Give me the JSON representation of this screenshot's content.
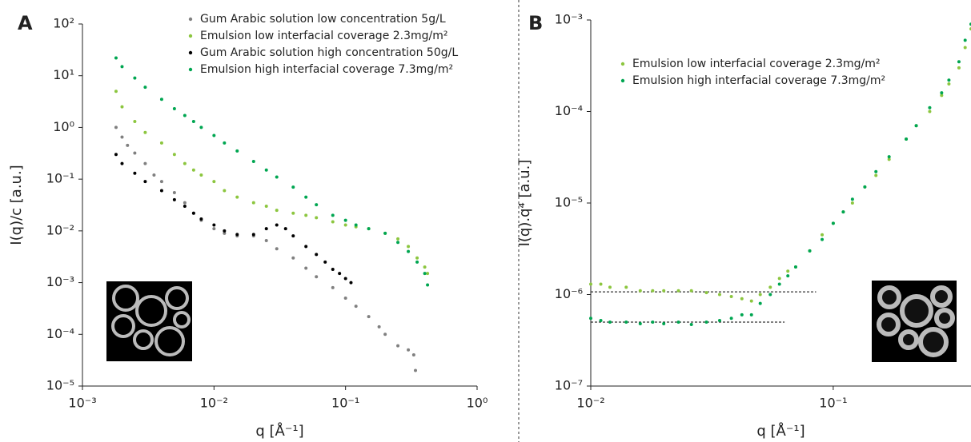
{
  "chart_data": [
    {
      "type": "scatter",
      "panel": "A",
      "xlabel": "q [Å⁻¹]",
      "ylabel": "I(q)/c [a.u.]",
      "log_x": true,
      "log_y": true,
      "xlim": [
        0.001,
        1
      ],
      "ylim": [
        1e-05,
        100
      ],
      "xticks": [
        {
          "value": 0.001,
          "label": "10⁻³"
        },
        {
          "value": 0.01,
          "label": "10⁻²"
        },
        {
          "value": 0.1,
          "label": "10⁻¹"
        },
        {
          "value": 1,
          "label": "10⁰"
        }
      ],
      "yticks": [
        {
          "value": 1e-05,
          "label": "10⁻⁵"
        },
        {
          "value": 0.0001,
          "label": "10⁻⁴"
        },
        {
          "value": 0.001,
          "label": "10⁻³"
        },
        {
          "value": 0.01,
          "label": "10⁻²"
        },
        {
          "value": 0.1,
          "label": "10⁻¹"
        },
        {
          "value": 1,
          "label": "10⁰"
        },
        {
          "value": 10,
          "label": "10¹"
        },
        {
          "value": 100,
          "label": "10²"
        }
      ],
      "legend": "upper right",
      "series": [
        {
          "name": "Gum Arabic solution low concentration 5g/L",
          "color": "#808080",
          "x": [
            0.0018,
            0.002,
            0.0022,
            0.0025,
            0.003,
            0.0035,
            0.004,
            0.005,
            0.006,
            0.007,
            0.008,
            0.01,
            0.012,
            0.015,
            0.02,
            0.025,
            0.03,
            0.04,
            0.05,
            0.06,
            0.08,
            0.1,
            0.12,
            0.15,
            0.18,
            0.2,
            0.25,
            0.3,
            0.33,
            0.34
          ],
          "values": [
            1.0,
            0.65,
            0.45,
            0.32,
            0.2,
            0.12,
            0.09,
            0.055,
            0.035,
            0.022,
            0.016,
            0.011,
            0.009,
            0.008,
            0.008,
            0.0065,
            0.0045,
            0.003,
            0.0019,
            0.0013,
            0.0008,
            0.0005,
            0.00035,
            0.00022,
            0.00014,
            0.0001,
            6e-05,
            5e-05,
            4e-05,
            2e-05
          ]
        },
        {
          "name": "Emulsion low  interfacial coverage 2.3mg/m²",
          "color": "#8cc63f",
          "x": [
            0.0018,
            0.002,
            0.0025,
            0.003,
            0.004,
            0.005,
            0.006,
            0.007,
            0.008,
            0.01,
            0.012,
            0.015,
            0.02,
            0.025,
            0.03,
            0.04,
            0.05,
            0.06,
            0.08,
            0.1,
            0.12,
            0.15,
            0.2,
            0.25,
            0.3,
            0.35,
            0.4,
            0.42
          ],
          "values": [
            5,
            2.5,
            1.3,
            0.8,
            0.5,
            0.3,
            0.2,
            0.15,
            0.12,
            0.09,
            0.06,
            0.045,
            0.035,
            0.03,
            0.025,
            0.022,
            0.02,
            0.018,
            0.015,
            0.013,
            0.012,
            0.011,
            0.009,
            0.007,
            0.005,
            0.003,
            0.002,
            0.0015
          ]
        },
        {
          "name": "Gum Arabic solution high concentration 50g/L",
          "color": "#000000",
          "x": [
            0.0018,
            0.002,
            0.0025,
            0.003,
            0.004,
            0.005,
            0.006,
            0.007,
            0.008,
            0.01,
            0.012,
            0.015,
            0.02,
            0.025,
            0.03,
            0.035,
            0.04,
            0.05,
            0.06,
            0.07,
            0.08,
            0.09,
            0.1,
            0.11
          ],
          "values": [
            0.3,
            0.2,
            0.13,
            0.09,
            0.06,
            0.04,
            0.03,
            0.022,
            0.017,
            0.013,
            0.01,
            0.0085,
            0.0085,
            0.011,
            0.013,
            0.011,
            0.008,
            0.005,
            0.0035,
            0.0025,
            0.0018,
            0.0015,
            0.0012,
            0.001
          ]
        },
        {
          "name": "Emulsion high interfacial coverage 7.3mg/m²",
          "color": "#00a651",
          "x": [
            0.0018,
            0.002,
            0.0025,
            0.003,
            0.004,
            0.005,
            0.006,
            0.007,
            0.008,
            0.01,
            0.012,
            0.015,
            0.02,
            0.025,
            0.03,
            0.04,
            0.05,
            0.06,
            0.08,
            0.1,
            0.12,
            0.15,
            0.2,
            0.25,
            0.3,
            0.35,
            0.4,
            0.42
          ],
          "values": [
            22,
            15,
            9,
            6,
            3.5,
            2.3,
            1.7,
            1.3,
            1.0,
            0.7,
            0.5,
            0.35,
            0.22,
            0.15,
            0.11,
            0.07,
            0.045,
            0.032,
            0.02,
            0.016,
            0.013,
            0.011,
            0.009,
            0.006,
            0.004,
            0.0025,
            0.0015,
            0.0009
          ]
        }
      ]
    },
    {
      "type": "scatter",
      "panel": "B",
      "xlabel": "q [Å⁻¹]",
      "ylabel": "I(q).q⁴ [a.u.]",
      "log_x": true,
      "log_y": true,
      "xlim": [
        0.01,
        0.37
      ],
      "ylim": [
        1e-07,
        0.001
      ],
      "xticks": [
        {
          "value": 0.01,
          "label": "10⁻²"
        },
        {
          "value": 0.1,
          "label": "10⁻¹"
        }
      ],
      "yticks": [
        {
          "value": 1e-07,
          "label": "10⁻⁷"
        },
        {
          "value": 1e-06,
          "label": "10⁻⁶"
        },
        {
          "value": 1e-05,
          "label": "10⁻⁵"
        },
        {
          "value": 0.0001,
          "label": "10⁻⁴"
        },
        {
          "value": 0.001,
          "label": "10⁻³"
        }
      ],
      "legend": "upper center",
      "reference_lines": [
        {
          "y": 1.07e-06,
          "x": [
            0.01,
            0.085
          ]
        },
        {
          "y": 5e-07,
          "x": [
            0.01,
            0.063
          ]
        }
      ],
      "series": [
        {
          "name": "Emulsion low  interfacial coverage 2.3mg/m²",
          "color": "#8cc63f",
          "x": [
            0.01,
            0.011,
            0.012,
            0.014,
            0.016,
            0.018,
            0.02,
            0.023,
            0.026,
            0.03,
            0.034,
            0.038,
            0.042,
            0.046,
            0.05,
            0.055,
            0.06,
            0.065,
            0.07,
            0.08,
            0.09,
            0.1,
            0.11,
            0.12,
            0.135,
            0.15,
            0.17,
            0.2,
            0.22,
            0.25,
            0.28,
            0.3,
            0.33,
            0.35,
            0.37
          ],
          "values": [
            1.3e-06,
            1.3e-06,
            1.2e-06,
            1.2e-06,
            1.1e-06,
            1.1e-06,
            1.1e-06,
            1.1e-06,
            1.1e-06,
            1.05e-06,
            1e-06,
            9.5e-07,
            9e-07,
            8.5e-07,
            1e-06,
            1.2e-06,
            1.5e-06,
            1.8e-06,
            2e-06,
            3e-06,
            4.5e-06,
            6e-06,
            8e-06,
            1e-05,
            1.5e-05,
            2e-05,
            3e-05,
            5e-05,
            7e-05,
            0.0001,
            0.00015,
            0.0002,
            0.0003,
            0.0005,
            0.0008
          ]
        },
        {
          "name": "Emulsion high interfacial coverage 7.3mg/m²",
          "color": "#00a651",
          "x": [
            0.01,
            0.011,
            0.012,
            0.014,
            0.016,
            0.018,
            0.02,
            0.023,
            0.026,
            0.03,
            0.034,
            0.038,
            0.042,
            0.046,
            0.05,
            0.055,
            0.06,
            0.065,
            0.07,
            0.08,
            0.09,
            0.1,
            0.11,
            0.12,
            0.135,
            0.15,
            0.17,
            0.2,
            0.22,
            0.25,
            0.28,
            0.3,
            0.33,
            0.35,
            0.37
          ],
          "values": [
            5.5e-07,
            5.2e-07,
            5e-07,
            5e-07,
            4.8e-07,
            5e-07,
            4.8e-07,
            5e-07,
            4.7e-07,
            5e-07,
            5.2e-07,
            5.5e-07,
            6e-07,
            6e-07,
            8e-07,
            1e-06,
            1.3e-06,
            1.6e-06,
            2e-06,
            3e-06,
            4e-06,
            6e-06,
            8e-06,
            1.1e-05,
            1.5e-05,
            2.2e-05,
            3.2e-05,
            5e-05,
            7e-05,
            0.00011,
            0.00016,
            0.00022,
            0.00035,
            0.0006,
            0.0009
          ]
        }
      ]
    }
  ]
}
